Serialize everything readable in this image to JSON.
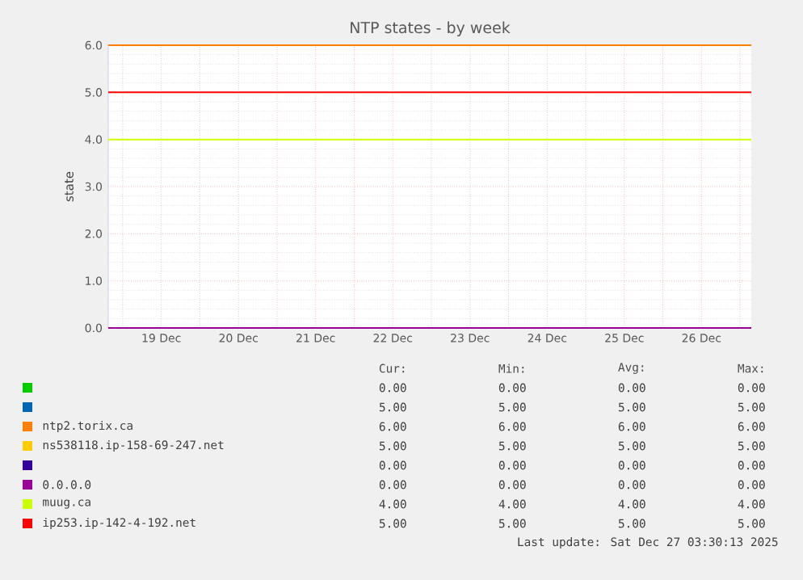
{
  "chart_data": {
    "type": "line",
    "title": "NTP states - by week",
    "ylabel": "state",
    "xlim": [
      "2025-12-18T19:30",
      "2025-12-27T03:30"
    ],
    "xticks": [
      {
        "value": "2025-12-19",
        "label": null
      },
      {
        "value": "2025-12-20",
        "label": null
      },
      {
        "value": "2025-12-21",
        "label": null
      },
      {
        "value": "2025-12-22",
        "label": null
      },
      {
        "value": "2025-12-23",
        "label": null
      },
      {
        "value": "2025-12-24",
        "label": null
      },
      {
        "value": "2025-12-25",
        "label": null
      },
      {
        "value": "2025-12-26",
        "label": null
      },
      {
        "value": "2025-12-27",
        "label": null
      },
      {
        "value": "2025-12-19T12:00",
        "label": "19 Dec"
      },
      {
        "value": "2025-12-20T12:00",
        "label": "20 Dec"
      },
      {
        "value": "2025-12-21T12:00",
        "label": "21 Dec"
      },
      {
        "value": "2025-12-22T12:00",
        "label": "22 Dec"
      },
      {
        "value": "2025-12-23T12:00",
        "label": "23 Dec"
      },
      {
        "value": "2025-12-24T12:00",
        "label": "24 Dec"
      },
      {
        "value": "2025-12-25T12:00",
        "label": "25 Dec"
      },
      {
        "value": "2025-12-26T12:00",
        "label": "26 Dec"
      }
    ],
    "ylim": [
      0,
      6
    ],
    "yticks": [
      {
        "value": 0,
        "label": "0.0"
      },
      {
        "value": 1,
        "label": "1.0"
      },
      {
        "value": 2,
        "label": "2.0"
      },
      {
        "value": 3,
        "label": "3.0"
      },
      {
        "value": 4,
        "label": "4.0"
      },
      {
        "value": 5,
        "label": "5.0"
      },
      {
        "value": 6,
        "label": "6.0"
      }
    ],
    "grid": true,
    "legend": "bottom",
    "x": [
      "2025-12-18T19:30",
      "2025-12-27T03:30"
    ],
    "series": [
      {
        "color": "#00cc00",
        "values": [
          null,
          null
        ]
      },
      {
        "color": "#0066b3",
        "values": [
          null,
          null
        ]
      },
      {
        "name": "ntp2.torix.ca",
        "color": "#ff8000",
        "values": [
          6,
          6
        ]
      },
      {
        "name": "ns538118.ip-158-69-247.net",
        "color": "#ffcc00",
        "values": [
          null,
          null
        ]
      },
      {
        "color": "#330099",
        "values": [
          null,
          null
        ]
      },
      {
        "name": "0.0.0.0",
        "color": "#990099",
        "values": [
          0,
          0
        ]
      },
      {
        "name": "muug.ca",
        "color": "#ccff00",
        "values": [
          4,
          4
        ]
      },
      {
        "name": "ip253.ip-142-4-192.net",
        "color": "#ff0000",
        "values": [
          5,
          5
        ]
      }
    ],
    "annotations": [
      "Cur:",
      "Min:",
      "Avg:",
      "Max:",
      "0.00",
      "0.00",
      "0.00",
      "0.00",
      "5.00",
      "5.00",
      "5.00",
      "5.00",
      "6.00",
      "6.00",
      "6.00",
      "6.00",
      "5.00",
      "5.00",
      "5.00",
      "5.00",
      "0.00",
      "0.00",
      "0.00",
      "0.00",
      "0.00",
      "0.00",
      "0.00",
      "0.00",
      "4.00",
      "4.00",
      "4.00",
      "4.00",
      "5.00",
      "5.00",
      "5.00",
      "5.00",
      "Last update: Sat Dec 27 03:30:13 2025"
    ]
  }
}
